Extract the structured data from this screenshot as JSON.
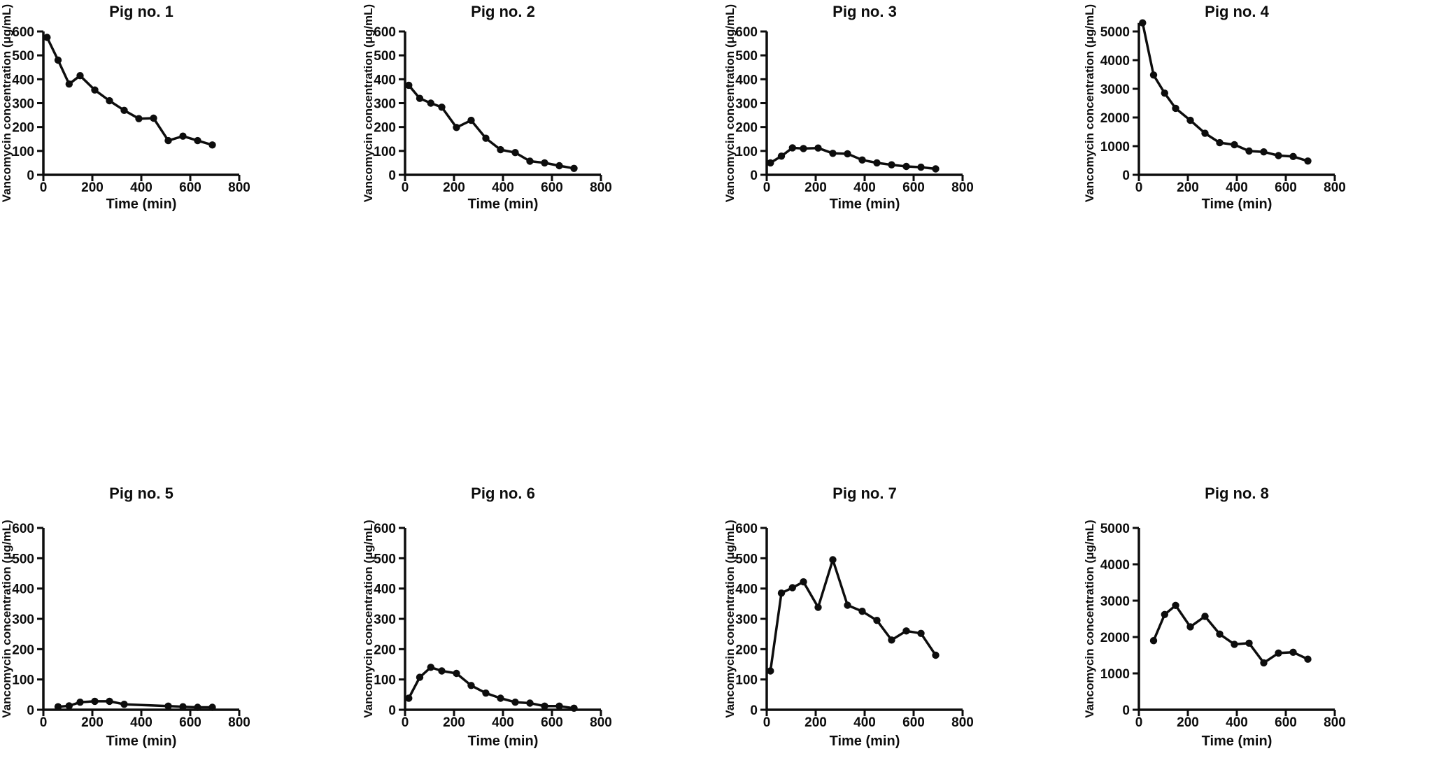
{
  "figure": {
    "background_color": "#ffffff",
    "ink_color": "#0d0d0d",
    "n_rows": 2,
    "n_cols": 4
  },
  "chart_data": [
    {
      "type": "line",
      "title": "Pig no. 1",
      "xlabel": "Time (min)",
      "ylabel": "Vancomycin concentration (μg/mL)",
      "xlim": [
        0,
        800
      ],
      "xticks": [
        0,
        200,
        400,
        600,
        800
      ],
      "ylim": [
        0,
        600
      ],
      "yticks": [
        0,
        100,
        200,
        300,
        400,
        500,
        600
      ],
      "grid": false,
      "legend": "none",
      "x": [
        15,
        60,
        105,
        150,
        210,
        270,
        330,
        390,
        450,
        510,
        570,
        630,
        690
      ],
      "y": [
        575,
        480,
        380,
        415,
        355,
        310,
        270,
        235,
        237,
        143,
        162,
        143,
        125
      ]
    },
    {
      "type": "line",
      "title": "Pig no. 2",
      "xlabel": "Time (min)",
      "ylabel": "Vancomycin concentration (μg/mL)",
      "xlim": [
        0,
        800
      ],
      "xticks": [
        0,
        200,
        400,
        600,
        800
      ],
      "ylim": [
        0,
        600
      ],
      "yticks": [
        0,
        100,
        200,
        300,
        400,
        500,
        600
      ],
      "grid": false,
      "legend": "none",
      "x": [
        15,
        60,
        105,
        150,
        210,
        270,
        330,
        390,
        450,
        510,
        570,
        630,
        690
      ],
      "y": [
        375,
        320,
        300,
        283,
        198,
        228,
        153,
        105,
        93,
        57,
        50,
        38,
        27
      ]
    },
    {
      "type": "line",
      "title": "Pig no. 3",
      "xlabel": "Time (min)",
      "ylabel": "Vancomycin concentration (μg/mL)",
      "xlim": [
        0,
        800
      ],
      "xticks": [
        0,
        200,
        400,
        600,
        800
      ],
      "ylim": [
        0,
        600
      ],
      "yticks": [
        0,
        100,
        200,
        300,
        400,
        500,
        600
      ],
      "grid": false,
      "legend": "none",
      "x": [
        15,
        60,
        105,
        150,
        210,
        270,
        330,
        390,
        450,
        510,
        570,
        630,
        690
      ],
      "y": [
        50,
        78,
        113,
        110,
        112,
        90,
        88,
        62,
        50,
        42,
        35,
        32,
        25
      ]
    },
    {
      "type": "line",
      "title": "Pig no. 4",
      "xlabel": "Time (min)",
      "ylabel": "Vancomycin concentration (μg/mL)",
      "xlim": [
        0,
        800
      ],
      "xticks": [
        0,
        200,
        400,
        600,
        800
      ],
      "ylim": [
        0,
        5300
      ],
      "yticks": [
        0,
        1000,
        2000,
        3000,
        4000,
        5000
      ],
      "grid": false,
      "legend": "none",
      "x": [
        15,
        60,
        105,
        150,
        210,
        270,
        330,
        390,
        450,
        510,
        570,
        630,
        690
      ],
      "y": [
        5300,
        3480,
        2850,
        2320,
        1900,
        1450,
        1120,
        1050,
        830,
        800,
        670,
        640,
        480
      ]
    },
    {
      "type": "line",
      "title": "Pig no. 5",
      "xlabel": "Time (min)",
      "ylabel": "Vancomycin concentration (μg/mL)",
      "xlim": [
        0,
        800
      ],
      "xticks": [
        0,
        200,
        400,
        600,
        800
      ],
      "ylim": [
        0,
        600
      ],
      "yticks": [
        0,
        100,
        200,
        300,
        400,
        500,
        600
      ],
      "grid": false,
      "legend": "none",
      "x": [
        60,
        105,
        150,
        210,
        270,
        330,
        510,
        570,
        630,
        690
      ],
      "y": [
        10,
        13,
        25,
        28,
        28,
        18,
        12,
        10,
        8,
        8
      ]
    },
    {
      "type": "line",
      "title": "Pig no. 6",
      "xlabel": "Time (min)",
      "ylabel": "Vancomycin concentration (μg/mL)",
      "xlim": [
        0,
        800
      ],
      "xticks": [
        0,
        200,
        400,
        600,
        800
      ],
      "ylim": [
        0,
        600
      ],
      "yticks": [
        0,
        100,
        200,
        300,
        400,
        500,
        600
      ],
      "grid": false,
      "legend": "none",
      "x": [
        15,
        60,
        105,
        150,
        210,
        270,
        330,
        390,
        450,
        510,
        570,
        630,
        690
      ],
      "y": [
        38,
        107,
        140,
        128,
        120,
        80,
        55,
        38,
        25,
        22,
        12,
        12,
        5
      ]
    },
    {
      "type": "line",
      "title": "Pig no. 7",
      "xlabel": "Time (min)",
      "ylabel": "Vancomycin concentration (μg/mL)",
      "xlim": [
        0,
        800
      ],
      "xticks": [
        0,
        200,
        400,
        600,
        800
      ],
      "ylim": [
        0,
        600
      ],
      "yticks": [
        0,
        100,
        200,
        300,
        400,
        500,
        600
      ],
      "grid": false,
      "legend": "none",
      "x": [
        15,
        60,
        105,
        150,
        210,
        270,
        330,
        390,
        450,
        510,
        570,
        630,
        690
      ],
      "y": [
        128,
        385,
        403,
        422,
        338,
        495,
        345,
        325,
        295,
        230,
        260,
        252,
        180
      ]
    },
    {
      "type": "line",
      "title": "Pig no. 8",
      "xlabel": "Time (min)",
      "ylabel": "Vancomycin concentration (μg/mL)",
      "xlim": [
        0,
        800
      ],
      "xticks": [
        0,
        200,
        400,
        600,
        800
      ],
      "ylim": [
        0,
        5300
      ],
      "yticks": [
        0,
        1000,
        2000,
        3000,
        4000,
        5000
      ],
      "grid": false,
      "legend": "none",
      "x": [
        60,
        105,
        150,
        210,
        270,
        330,
        390,
        450,
        510,
        570,
        630,
        690
      ],
      "y": [
        1900,
        2620,
        2870,
        2280,
        2570,
        2080,
        1800,
        1830,
        1290,
        1560,
        1580,
        1390
      ]
    }
  ]
}
